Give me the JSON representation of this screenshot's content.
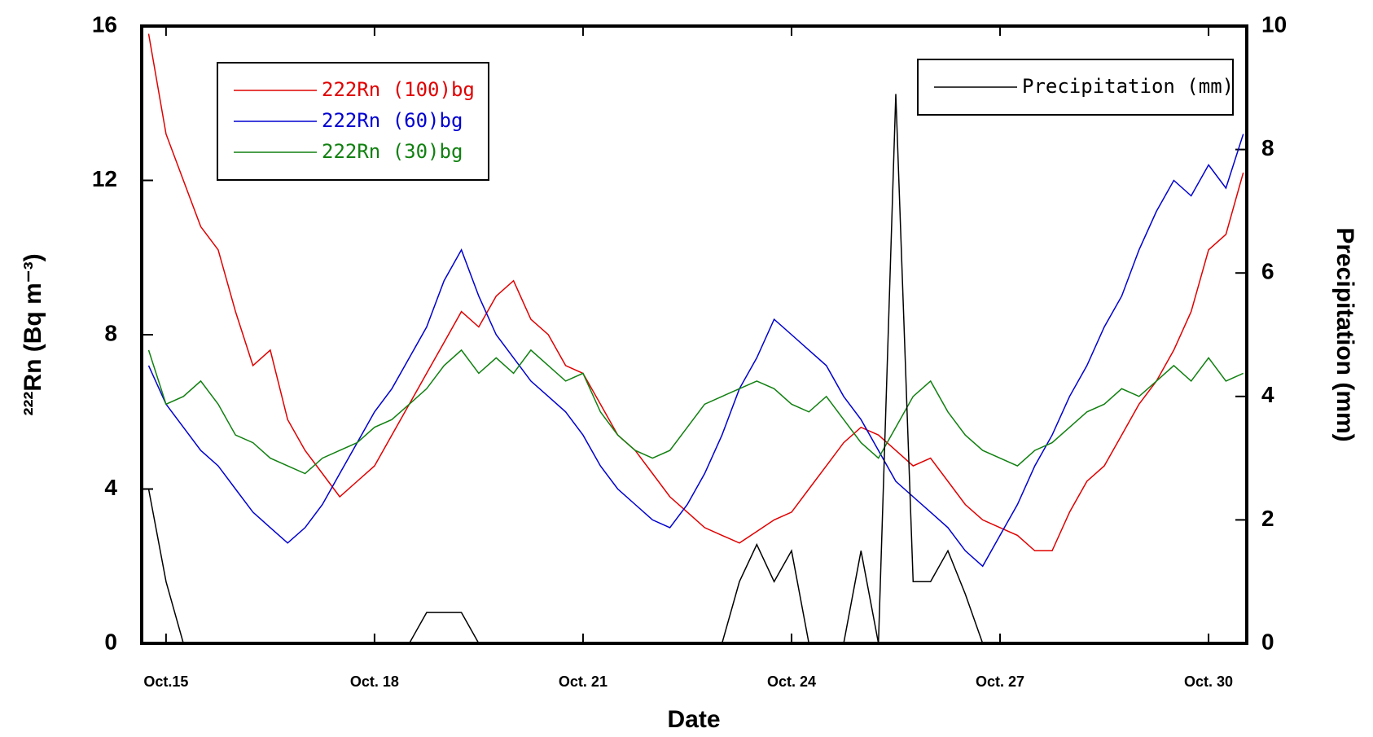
{
  "chart_data": {
    "type": "line",
    "xlabel": "Date",
    "ylabel": "²²²Rn (Bq m⁻³)",
    "y2label": "Precipitation (mm)",
    "x": [
      14.75,
      15,
      15.25,
      15.5,
      15.75,
      16,
      16.25,
      16.5,
      16.75,
      17,
      17.25,
      17.5,
      17.75,
      18,
      18.25,
      18.5,
      18.75,
      19,
      19.25,
      19.5,
      19.75,
      20,
      20.25,
      20.5,
      20.75,
      21,
      21.25,
      21.5,
      21.75,
      22,
      22.25,
      22.5,
      22.75,
      23,
      23.25,
      23.5,
      23.75,
      24,
      24.25,
      24.5,
      24.75,
      25,
      25.25,
      25.5,
      25.75,
      26,
      26.25,
      26.5,
      26.75,
      27,
      27.25,
      27.5,
      27.75,
      28,
      28.25,
      28.5,
      28.75,
      29,
      29.25,
      29.5,
      29.75,
      30,
      30.25,
      30.5
    ],
    "series": [
      {
        "name": "222Rn (100)bg",
        "color": "#e00000",
        "values": [
          15.8,
          13.2,
          12.0,
          10.8,
          10.2,
          8.6,
          7.2,
          7.6,
          5.8,
          5.0,
          4.4,
          3.8,
          4.2,
          4.6,
          5.4,
          6.2,
          7.0,
          7.8,
          8.6,
          8.2,
          9.0,
          9.4,
          8.4,
          8.0,
          7.2,
          7.0,
          6.2,
          5.4,
          5.0,
          4.4,
          3.8,
          3.4,
          3.0,
          2.8,
          2.6,
          2.9,
          3.2,
          3.4,
          4.0,
          4.6,
          5.2,
          5.6,
          5.4,
          5.0,
          4.6,
          4.8,
          4.2,
          3.6,
          3.2,
          3.0,
          2.8,
          2.4,
          2.4,
          3.4,
          4.2,
          4.6,
          5.4,
          6.2,
          6.8,
          7.6,
          8.6,
          10.2,
          10.6,
          12.2
        ]
      },
      {
        "name": "222Rn (60)bg",
        "color": "#0000d0",
        "values": [
          7.2,
          6.2,
          5.6,
          5.0,
          4.6,
          4.0,
          3.4,
          3.0,
          2.6,
          3.0,
          3.6,
          4.4,
          5.2,
          6.0,
          6.6,
          7.4,
          8.2,
          9.4,
          10.2,
          9.0,
          8.0,
          7.4,
          6.8,
          6.4,
          6.0,
          5.4,
          4.6,
          4.0,
          3.6,
          3.2,
          3.0,
          3.6,
          4.4,
          5.4,
          6.6,
          7.4,
          8.4,
          8.0,
          7.6,
          7.2,
          6.4,
          5.8,
          5.0,
          4.2,
          3.8,
          3.4,
          3.0,
          2.4,
          2.0,
          2.8,
          3.6,
          4.6,
          5.4,
          6.4,
          7.2,
          8.2,
          9.0,
          10.2,
          11.2,
          12.0,
          11.6,
          12.4,
          11.8,
          13.2
        ]
      },
      {
        "name": "222Rn (30)bg",
        "color": "#108010",
        "values": [
          7.6,
          6.2,
          6.4,
          6.8,
          6.2,
          5.4,
          5.2,
          4.8,
          4.6,
          4.4,
          4.8,
          5.0,
          5.2,
          5.6,
          5.8,
          6.2,
          6.6,
          7.2,
          7.6,
          7.0,
          7.4,
          7.0,
          7.6,
          7.2,
          6.8,
          7.0,
          6.0,
          5.4,
          5.0,
          4.8,
          5.0,
          5.6,
          6.2,
          6.4,
          6.6,
          6.8,
          6.6,
          6.2,
          6.0,
          6.4,
          5.8,
          5.2,
          4.8,
          5.6,
          6.4,
          6.8,
          6.0,
          5.4,
          5.0,
          4.8,
          4.6,
          5.0,
          5.2,
          5.6,
          6.0,
          6.2,
          6.6,
          6.4,
          6.8,
          7.2,
          6.8,
          7.4,
          6.8,
          7.0
        ]
      },
      {
        "name": "Precipitation (mm)",
        "color": "#000000",
        "axis": "y2",
        "values": [
          2.5,
          1.0,
          0,
          0,
          0,
          0,
          0,
          0,
          0,
          0,
          0,
          0,
          0,
          0,
          0,
          0,
          0.5,
          0.5,
          0.5,
          0,
          0,
          0,
          0,
          0,
          0,
          0,
          0,
          0,
          0,
          0,
          0,
          0,
          0,
          0,
          1.0,
          1.6,
          1.0,
          1.5,
          0,
          0,
          0,
          1.5,
          0,
          8.9,
          1.0,
          1.0,
          1.5,
          0.8,
          0,
          0,
          0,
          0,
          0,
          0,
          0,
          0,
          0,
          0,
          0,
          0,
          0,
          0,
          0,
          0
        ]
      }
    ],
    "xlim": [
      14.65,
      30.55
    ],
    "xticks": [
      {
        "value": 15,
        "label": "Oct.15"
      },
      {
        "value": 18,
        "label": "Oct. 18"
      },
      {
        "value": 21,
        "label": "Oct. 21"
      },
      {
        "value": 24,
        "label": "Oct. 24"
      },
      {
        "value": 27,
        "label": "Oct. 27"
      },
      {
        "value": 30,
        "label": "Oct. 30"
      }
    ],
    "ylim": [
      0,
      16
    ],
    "yticks": [
      0,
      4,
      8,
      12,
      16
    ],
    "y2lim": [
      0,
      10
    ],
    "y2ticks": [
      0,
      2,
      4,
      6,
      8,
      10
    ],
    "legend": "upper left",
    "legend_y2": "upper right"
  }
}
